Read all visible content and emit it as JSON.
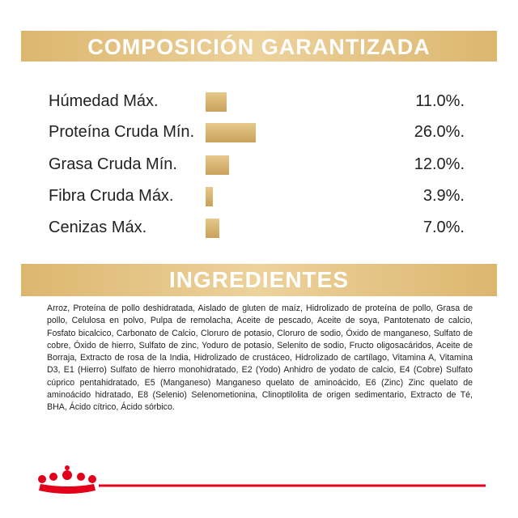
{
  "composition": {
    "title": "COMPOSICIÓN GARANTIZADA",
    "items": [
      {
        "label": "Húmedad Máx.",
        "value": 11.0,
        "value_label": "11.0%."
      },
      {
        "label": "Proteína Cruda Mín.",
        "value": 26.0,
        "value_label": "26.0%."
      },
      {
        "label": "Grasa Cruda Mín.",
        "value": 12.0,
        "value_label": "12.0%."
      },
      {
        "label": "Fibra Cruda Máx.",
        "value": 3.9,
        "value_label": "3.9%."
      },
      {
        "label": "Cenizas Máx.",
        "value": 7.0,
        "value_label": "7.0%."
      }
    ]
  },
  "ingredients": {
    "title": "INGREDIENTES",
    "text": "Arroz, Proteína de pollo deshidratada, Aislado de gluten de maíz, Hidrolizado de proteína de pollo, Grasa de pollo, Celulosa en polvo, Pulpa de remolacha, Aceite de pescado, Aceite de soya, Pantotenato de calcio, Fosfato bicalcico, Carbonato de Calcio, Cloruro de potasio, Cloruro de sodio, Óxido de manganeso, Sulfato de cobre, Óxido de hierro, Sulfato de zinc, Yoduro de potasio, Selenito de sodio, Fructo oligosacáridos, Aceite de Borraja, Extracto de rosa de la India, Hidrolizado de crustáceo, Hidrolizado de cartílago, Vitamina A, Vitamina D3, E1 (Hierro) Sulfato de hierro monohidratado, E2 (Yodo) Anhidro de yodato de calcio, E4 (Cobre) Sulfato cúprico pentahidratado, E5 (Manganeso) Manganeso quelato de aminoácido, E6 (Zinc) Zinc quelato de aminoácido hidratado, E8 (Selenio) Selenometionina, Clinoptilolita de origen sedimentario, Extracto de Té, BHA, Ácido cítrico, Ácido sórbico."
  }
}
